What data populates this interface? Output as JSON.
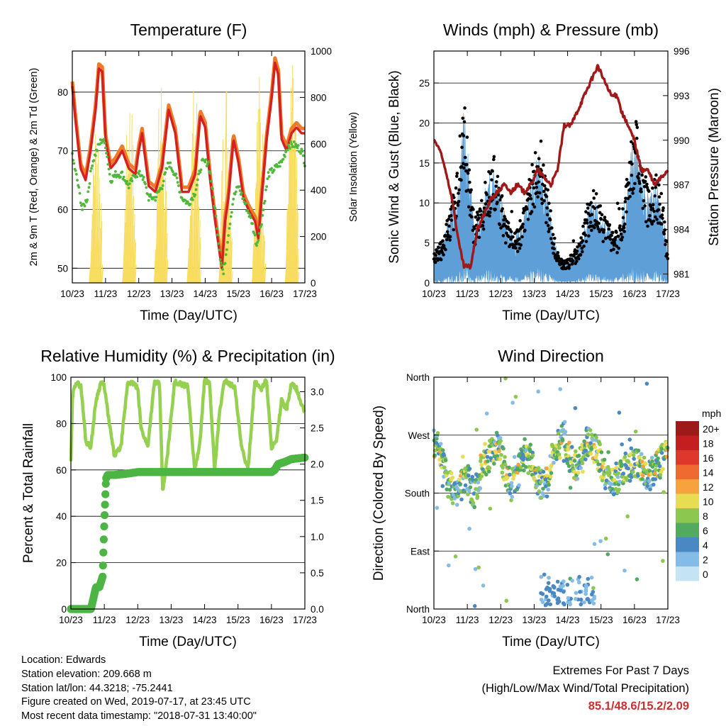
{
  "colors": {
    "temp_2m": "#ee7a2a",
    "temp_9m": "#d42020",
    "dewpoint": "#4fb83a",
    "solar": "#f7dc5e",
    "wind": "#5d9fd6",
    "gust": "#000000",
    "pressure": "#a01818",
    "humidity": "#96d050",
    "precip": "#4db544"
  },
  "x_axis": {
    "label": "Time (Day/UTC)",
    "ticks": [
      "10/23",
      "11/23",
      "12/23",
      "13/23",
      "14/23",
      "15/23",
      "16/23",
      "17/23"
    ]
  },
  "chart_data": [
    {
      "type": "line",
      "title": "Temperature (F)",
      "ylabel": "2m & 9m T (Red, Orange) & 2m Td (Green)",
      "y2label": "Solar Insolation (Yellow)",
      "ylim": [
        47.5,
        87.0
      ],
      "y2lim": [
        0,
        1000
      ],
      "yticks": [
        50,
        60,
        70,
        80
      ],
      "y2ticks": [
        0,
        200,
        400,
        600,
        800,
        1000
      ],
      "grid": true,
      "series": [
        {
          "key": "temp",
          "x": [
            0,
            0.1,
            0.25,
            0.4,
            0.55,
            0.7,
            0.8,
            0.9,
            1.0,
            1.15,
            1.3,
            1.5,
            1.7,
            1.9,
            2.0,
            2.1,
            2.3,
            2.5,
            2.7,
            2.9,
            3.1,
            3.3,
            3.5,
            3.7,
            3.85,
            4.0,
            4.15,
            4.3,
            4.4,
            4.5,
            4.6,
            4.7,
            4.85,
            5.0,
            5.15,
            5.3,
            5.5,
            5.6,
            5.7,
            5.85,
            6.0,
            6.1,
            6.2,
            6.3,
            6.45,
            6.6,
            6.75,
            6.9,
            7.0
          ],
          "y": [
            81,
            75,
            67,
            65,
            70,
            77,
            84,
            83.5,
            72,
            67,
            68,
            70,
            67,
            66,
            70,
            73,
            64,
            63,
            67,
            77,
            73,
            63,
            63,
            66,
            76,
            74,
            65,
            58,
            54,
            50,
            58,
            62,
            72,
            68,
            62,
            60,
            58,
            55,
            62,
            72,
            79,
            85,
            83,
            72,
            70,
            73,
            74,
            73,
            73
          ]
        },
        {
          "key": "dewpoint",
          "x": [
            0,
            0.15,
            0.3,
            0.45,
            0.6,
            0.8,
            0.9,
            1.0,
            1.15,
            1.3,
            1.5,
            1.7,
            1.9,
            2.1,
            2.3,
            2.5,
            2.7,
            2.9,
            3.1,
            3.3,
            3.5,
            3.7,
            3.9,
            4.1,
            4.3,
            4.45,
            4.55,
            4.7,
            4.85,
            5.0,
            5.2,
            5.4,
            5.55,
            5.7,
            5.9,
            6.1,
            6.3,
            6.5,
            6.7,
            6.9,
            7.0
          ],
          "y": [
            69,
            65,
            60,
            62,
            68,
            71,
            72,
            71,
            65,
            66,
            66,
            64,
            66,
            66,
            62,
            62,
            64,
            68,
            66,
            62,
            61,
            63,
            68,
            68,
            60,
            52,
            49,
            56,
            62,
            64,
            61,
            58,
            54,
            58,
            66,
            67,
            68,
            71,
            71,
            70,
            68
          ]
        },
        {
          "key": "solar",
          "peaks": [
            {
              "x": 0.7,
              "y": 770
            },
            {
              "x": 1.7,
              "y": 860
            },
            {
              "x": 2.65,
              "y": 940
            },
            {
              "x": 3.65,
              "y": 880
            },
            {
              "x": 4.6,
              "y": 930
            },
            {
              "x": 5.6,
              "y": 930
            },
            {
              "x": 6.6,
              "y": 960
            }
          ]
        }
      ]
    },
    {
      "type": "line",
      "title": "Winds (mph) & Pressure (mb)",
      "ylabel": "Sonic Wind & Gust (Blue, Black)",
      "y2label": "Station Pressure (Maroon)",
      "ylim": [
        0,
        29.0
      ],
      "y2lim": [
        980.4,
        996.0
      ],
      "yticks": [
        0,
        5,
        10,
        15,
        20,
        25
      ],
      "y2ticks": [
        981,
        984,
        987,
        990,
        993,
        996
      ],
      "grid": true,
      "series": [
        {
          "key": "pressure",
          "x": [
            0,
            0.15,
            0.35,
            0.55,
            0.75,
            0.9,
            1.1,
            1.3,
            1.5,
            1.7,
            1.9,
            2.1,
            2.3,
            2.5,
            2.7,
            2.9,
            3.1,
            3.3,
            3.5,
            3.7,
            3.9,
            4.1,
            4.3,
            4.5,
            4.7,
            4.9,
            5.1,
            5.3,
            5.5,
            5.6,
            5.8,
            6.0,
            6.2,
            6.4,
            6.6,
            6.8,
            7.0
          ],
          "y": [
            990,
            989.5,
            988,
            986,
            983,
            981.5,
            981.5,
            984,
            985,
            986,
            986.5,
            987,
            986.5,
            987,
            986.5,
            987,
            988,
            987.5,
            987,
            988,
            991,
            991,
            992,
            993,
            994,
            995,
            994,
            993,
            993,
            992,
            991,
            990,
            988,
            988,
            987,
            987.5,
            988
          ]
        },
        {
          "key": "wind",
          "x": [
            0,
            0.2,
            0.4,
            0.6,
            0.8,
            0.9,
            1.0,
            1.2,
            1.4,
            1.6,
            1.8,
            2.0,
            2.2,
            2.4,
            2.6,
            2.8,
            3.0,
            3.2,
            3.4,
            3.6,
            3.8,
            4.0,
            4.2,
            4.4,
            4.6,
            4.8,
            5.0,
            5.2,
            5.4,
            5.6,
            5.8,
            6.0,
            6.2,
            6.4,
            6.6,
            6.8,
            7.0
          ],
          "y": [
            2,
            2.5,
            4,
            6,
            8,
            12,
            9,
            4,
            5,
            7,
            8,
            6,
            4,
            3,
            4,
            6,
            8,
            9,
            6,
            3,
            1.5,
            1.5,
            2,
            3,
            5,
            6,
            5,
            4,
            3,
            4,
            7,
            11,
            8,
            6,
            7,
            6,
            2
          ]
        }
      ]
    },
    {
      "type": "line",
      "title": "Relative Humidity (%) & Precipitation (in)",
      "ylabel": "Percent & Total Rainfall",
      "ylim": [
        0,
        100
      ],
      "y2lim": [
        0,
        3.2
      ],
      "yticks": [
        0,
        20,
        40,
        60,
        80,
        100
      ],
      "y2ticks": [
        "0.0",
        "0.5",
        "1.0",
        "1.5",
        "2.0",
        "2.5",
        "3.0"
      ],
      "grid": true,
      "series": [
        {
          "key": "humidity",
          "x": [
            0,
            0.05,
            0.15,
            0.3,
            0.45,
            0.6,
            0.75,
            0.9,
            1.0,
            1.15,
            1.3,
            1.5,
            1.7,
            1.9,
            2.0,
            2.1,
            2.3,
            2.5,
            2.65,
            2.75,
            2.9,
            3.1,
            3.3,
            3.5,
            3.7,
            3.85,
            4.0,
            4.15,
            4.3,
            4.45,
            4.6,
            4.75,
            4.9,
            5.1,
            5.3,
            5.5,
            5.7,
            5.85,
            6.0,
            6.15,
            6.3,
            6.45,
            6.6,
            6.75,
            6.9,
            7.0
          ],
          "y": [
            64,
            92,
            98,
            96,
            72,
            70,
            90,
            98,
            96,
            80,
            66,
            70,
            98,
            97,
            95,
            78,
            70,
            98,
            97,
            50,
            68,
            98,
            97,
            96,
            60,
            70,
            99,
            97,
            60,
            85,
            99,
            97,
            96,
            70,
            60,
            98,
            95,
            99,
            70,
            72,
            90,
            86,
            97,
            95,
            88,
            85
          ]
        },
        {
          "key": "precip",
          "x": [
            0,
            0.6,
            0.65,
            0.75,
            0.85,
            0.95,
            1.0,
            1.05,
            1.1,
            1.3,
            1.7,
            2.0,
            3.0,
            4.0,
            5.0,
            5.5,
            6.0,
            6.1,
            6.2,
            6.4,
            6.6,
            7.0
          ],
          "y": [
            0,
            0,
            0.1,
            0.3,
            0.3,
            0.45,
            1.2,
            1.8,
            1.85,
            1.85,
            1.87,
            1.89,
            1.89,
            1.89,
            1.89,
            1.89,
            1.89,
            1.92,
            2.0,
            2.03,
            2.07,
            2.09
          ]
        }
      ]
    },
    {
      "type": "scatter",
      "title": "Wind Direction",
      "ylabel": "Direction (Colored By Speed)",
      "yticks": [
        "North",
        "East",
        "South",
        "West",
        "North"
      ],
      "ylim": [
        0,
        360
      ],
      "legend_title": "mph",
      "legend_labels": [
        "20+",
        "18",
        "16",
        "14",
        "12",
        "10",
        "8",
        "6",
        "4",
        "2",
        "0"
      ],
      "legend_colors": [
        "#9b1a1a",
        "#c41e20",
        "#e0372c",
        "#ee6a30",
        "#f6a23e",
        "#e8dc52",
        "#8cc850",
        "#52aa60",
        "#4a88c4",
        "#84bce8",
        "#c4e4f6"
      ],
      "trend": {
        "x": [
          0,
          0.2,
          0.4,
          0.6,
          0.8,
          1.0,
          1.2,
          1.5,
          1.7,
          1.9,
          2.1,
          2.3,
          2.5,
          2.7,
          2.9,
          3.0,
          3.2,
          3.4,
          3.6,
          3.8,
          3.9,
          4.0,
          4.2,
          4.4,
          4.6,
          4.8,
          5.0,
          5.2,
          5.4,
          5.6,
          5.8,
          6.0,
          6.2,
          6.4,
          6.6,
          6.8,
          7.0
        ],
        "y": [
          260,
          240,
          200,
          180,
          190,
          200,
          180,
          230,
          240,
          260,
          220,
          190,
          210,
          240,
          230,
          220,
          190,
          200,
          250,
          260,
          270,
          240,
          220,
          230,
          260,
          250,
          230,
          200,
          200,
          210,
          220,
          230,
          220,
          200,
          220,
          230,
          240
        ]
      }
    }
  ],
  "info": [
    "Location: Edwards",
    "Station elevation: 209.668 m",
    "Station lat/lon: 44.3218; -75.2441",
    "Figure created on Wed, 2019-07-17, at 23:45 UTC",
    "Most recent data timestamp: \"2018-07-31 13:40:00\""
  ],
  "extremes": {
    "line1": "Extremes For Past 7 Days",
    "line2": "(High/Low/Max Wind/Total Precipitation)",
    "value": "85.1/48.6/15.2/2.09"
  }
}
